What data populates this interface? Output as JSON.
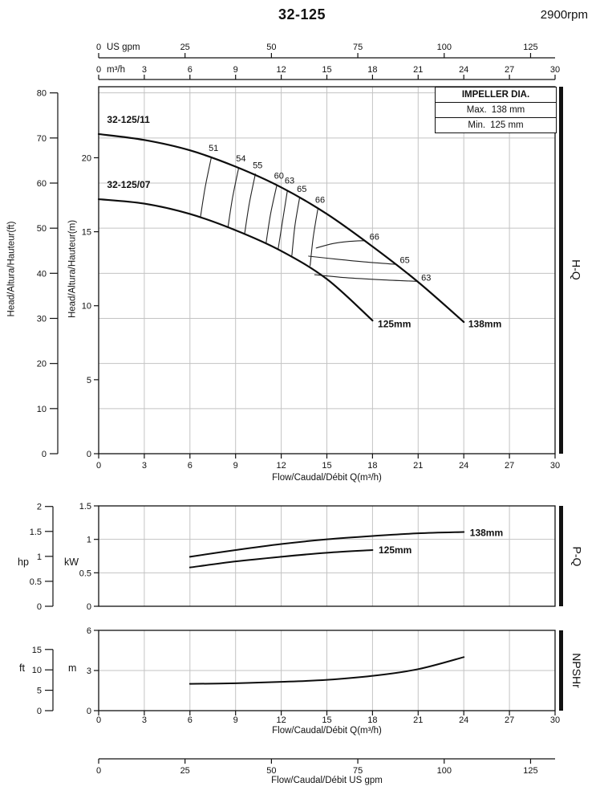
{
  "header": {
    "title": "32-125",
    "rpm": "2900rpm"
  },
  "impeller_box": {
    "title": "IMPELLER DIA.",
    "rows": [
      {
        "label": "Max.",
        "value": "138 mm"
      },
      {
        "label": "Min.",
        "value": "125 mm"
      }
    ]
  },
  "side_labels": {
    "hq": "H-Q",
    "pq": "P-Q",
    "npshr": "NPSHr"
  },
  "axis_captions": {
    "flow_m3h": "Flow/Caudal/Débit Q(m³/h)",
    "flow_gpm": "Flow/Caudal/Débit  US gpm",
    "head_ft": "Head/Altura/Hauteur(ft)",
    "head_m": "Head/Altura/Hauteur(m)",
    "power_hp": "hp",
    "power_kw": "kW",
    "npshr_ft": "ft",
    "npshr_m": "m"
  },
  "flow_axes": {
    "gpm_unit": "US gpm",
    "m3h_unit": "m³/h",
    "gpm_ticks": [
      0,
      25,
      50,
      75,
      100,
      125
    ],
    "m3h_ticks": [
      0,
      3,
      6,
      9,
      12,
      15,
      18,
      21,
      24,
      27,
      30
    ]
  },
  "chart_data": [
    {
      "type": "line",
      "name": "H-Q",
      "title": "32-125 head curves at 2900rpm",
      "xlabel": "Flow/Caudal/Débit Q(m³/h)",
      "ylabel_m": "Head/Altura/Hauteur(m)",
      "ylabel_ft": "Head/Altura/Hauteur(ft)",
      "xlim": [
        0,
        30
      ],
      "ylim_m": [
        0,
        24.8
      ],
      "x_ticks": [
        0,
        3,
        6,
        9,
        12,
        15,
        18,
        21,
        24,
        27,
        30
      ],
      "y_m_ticks": [
        0,
        5,
        10,
        15,
        20
      ],
      "y_ft_ticks": [
        0,
        10,
        20,
        30,
        40,
        50,
        60,
        70,
        80
      ],
      "series": [
        {
          "name": "32-125/11",
          "impeller": "138mm",
          "points": [
            [
              0,
              21.6
            ],
            [
              3,
              21.2
            ],
            [
              6,
              20.5
            ],
            [
              9,
              19.4
            ],
            [
              12,
              18.0
            ],
            [
              15,
              16.2
            ],
            [
              18,
              14.0
            ],
            [
              21,
              11.6
            ],
            [
              24,
              8.9
            ]
          ]
        },
        {
          "name": "32-125/07",
          "impeller": "125mm",
          "points": [
            [
              0,
              17.2
            ],
            [
              3,
              16.9
            ],
            [
              6,
              16.2
            ],
            [
              9,
              15.1
            ],
            [
              12,
              13.7
            ],
            [
              15,
              11.8
            ],
            [
              18,
              9.0
            ]
          ]
        }
      ],
      "series_labels": [
        {
          "text": "32-125/11",
          "pos": [
            0.55,
            22.35
          ]
        },
        {
          "text": "32-125/07",
          "pos": [
            0.55,
            17.95
          ]
        },
        {
          "text": "125mm",
          "pos": [
            18.35,
            8.55
          ]
        },
        {
          "text": "138mm",
          "pos": [
            24.3,
            8.55
          ]
        }
      ],
      "efficiency_contours": [
        {
          "label": "51",
          "points": [
            [
              7.4,
              20.0
            ],
            [
              7.0,
              18.0
            ],
            [
              6.7,
              16.05
            ]
          ],
          "label_pos": [
            7.55,
            20.45
          ]
        },
        {
          "label": "54",
          "points": [
            [
              9.2,
              19.3
            ],
            [
              8.8,
              17.3
            ],
            [
              8.5,
              15.3
            ]
          ],
          "label_pos": [
            9.35,
            19.75
          ]
        },
        {
          "label": "55",
          "points": [
            [
              10.3,
              18.9
            ],
            [
              9.9,
              16.9
            ],
            [
              9.6,
              14.9
            ]
          ],
          "label_pos": [
            10.45,
            19.3
          ]
        },
        {
          "label": "60",
          "points": [
            [
              11.7,
              18.1
            ],
            [
              11.3,
              16.2
            ],
            [
              11.0,
              14.2
            ]
          ],
          "label_pos": [
            11.85,
            18.6
          ]
        },
        {
          "label": "63",
          "points": [
            [
              12.4,
              17.75
            ],
            [
              12.1,
              15.8
            ],
            [
              11.8,
              13.85
            ]
          ],
          "label_pos": [
            12.55,
            18.25
          ]
        },
        {
          "label": "65",
          "points": [
            [
              13.2,
              17.25
            ],
            [
              12.9,
              15.4
            ],
            [
              12.7,
              13.4
            ]
          ],
          "label_pos": [
            13.35,
            17.7
          ]
        },
        {
          "label": "66",
          "points": [
            [
              14.4,
              16.5
            ],
            [
              14.1,
              14.6
            ],
            [
              13.9,
              12.7
            ]
          ],
          "label_pos": [
            14.55,
            16.95
          ]
        },
        {
          "label": "66",
          "points": [
            [
              14.3,
              13.9
            ],
            [
              15.4,
              14.2
            ],
            [
              16.5,
              14.35
            ],
            [
              17.5,
              14.4
            ]
          ],
          "label_pos": [
            17.8,
            14.45
          ],
          "label_anchor": "start"
        },
        {
          "label": "65",
          "points": [
            [
              13.8,
              13.35
            ],
            [
              15.6,
              13.15
            ],
            [
              17.6,
              12.95
            ],
            [
              19.5,
              12.8
            ]
          ],
          "label_pos": [
            19.8,
            12.9
          ],
          "label_anchor": "start"
        },
        {
          "label": "63",
          "points": [
            [
              14.2,
              12.1
            ],
            [
              16.2,
              11.9
            ],
            [
              18.6,
              11.75
            ],
            [
              20.9,
              11.65
            ]
          ],
          "label_pos": [
            21.2,
            11.7
          ],
          "label_anchor": "start"
        }
      ]
    },
    {
      "type": "line",
      "name": "P-Q",
      "ylim_kw": [
        0,
        1.5
      ],
      "y_kw_ticks": [
        0,
        0.5,
        1,
        1.5
      ],
      "y_hp_ticks": [
        0,
        0.5,
        1,
        1.5,
        2
      ],
      "series": [
        {
          "name": "138mm",
          "points": [
            [
              6,
              0.74
            ],
            [
              9,
              0.84
            ],
            [
              12,
              0.93
            ],
            [
              15,
              1.0
            ],
            [
              18,
              1.05
            ],
            [
              21,
              1.09
            ],
            [
              24,
              1.11
            ]
          ],
          "label_pos": [
            24.4,
            1.1
          ]
        },
        {
          "name": "125mm",
          "points": [
            [
              6,
              0.58
            ],
            [
              9,
              0.67
            ],
            [
              12,
              0.74
            ],
            [
              15,
              0.8
            ],
            [
              18,
              0.84
            ]
          ],
          "label_pos": [
            18.4,
            0.84
          ]
        }
      ]
    },
    {
      "type": "line",
      "name": "NPSHr",
      "xlabel": "Flow/Caudal/Débit Q(m³/h)",
      "ylim_m": [
        0,
        6
      ],
      "x_ticks": [
        0,
        3,
        6,
        9,
        12,
        15,
        18,
        21,
        24,
        27,
        30
      ],
      "y_m_ticks": [
        0,
        3,
        6
      ],
      "y_ft_ticks": [
        0,
        5,
        10,
        15
      ],
      "series": [
        {
          "name": "NPSHr",
          "points": [
            [
              6,
              2.0
            ],
            [
              9,
              2.05
            ],
            [
              12,
              2.15
            ],
            [
              15,
              2.3
            ],
            [
              18,
              2.6
            ],
            [
              21,
              3.1
            ],
            [
              24,
              4.0
            ]
          ]
        }
      ]
    }
  ]
}
